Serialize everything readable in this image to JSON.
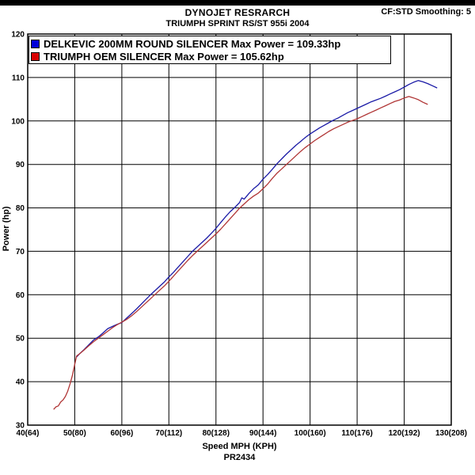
{
  "header": {
    "brand": "DYNOJET RESRARCH",
    "subtitle": "TRIUMPH SPRINT RS/ST 955i 2004",
    "smoothing": "CF:STD Smoothing: 5"
  },
  "legend": [
    {
      "label": "DELKEVIC 200MM ROUND SILENCER Max Power = 109.33hp",
      "color": "#0000d8"
    },
    {
      "label": "TRIUMPH OEM SILENCER Max Power = 105.62hp",
      "color": "#d80000"
    }
  ],
  "footer": {
    "code": "PR2434"
  },
  "chart_data": {
    "type": "line",
    "title": "TRIUMPH SPRINT RS/ST 955i 2004",
    "xlabel": "Speed MPH (KPH)",
    "ylabel": "Power (hp)",
    "xlim": [
      40,
      130
    ],
    "ylim": [
      30,
      120
    ],
    "grid": true,
    "legend_position": "top-left",
    "x_ticks": [
      {
        "value": 40,
        "label": "40(64)"
      },
      {
        "value": 50,
        "label": "50(80)"
      },
      {
        "value": 60,
        "label": "60(96)"
      },
      {
        "value": 70,
        "label": "70(112)"
      },
      {
        "value": 80,
        "label": "80(128)"
      },
      {
        "value": 90,
        "label": "90(144)"
      },
      {
        "value": 100,
        "label": "100(160)"
      },
      {
        "value": 110,
        "label": "110(176)"
      },
      {
        "value": 120,
        "label": "120(192)"
      },
      {
        "value": 130,
        "label": "130(208)"
      }
    ],
    "y_ticks": [
      30,
      40,
      50,
      60,
      70,
      80,
      90,
      100,
      110,
      120
    ],
    "series": [
      {
        "name": "DELKEVIC 200MM ROUND SILENCER",
        "key": "delkevic-power-curve",
        "max_power_hp": 109.33,
        "color": "#1a1aa6",
        "points": [
          [
            50.3,
            45.6
          ],
          [
            51,
            46.4
          ],
          [
            52,
            47.4
          ],
          [
            53,
            48.5
          ],
          [
            54,
            49.6
          ],
          [
            55,
            50.3
          ],
          [
            56,
            51.2
          ],
          [
            57,
            52.2
          ],
          [
            58,
            52.7
          ],
          [
            59,
            53.2
          ],
          [
            60,
            53.6
          ],
          [
            61,
            54.6
          ],
          [
            62,
            55.6
          ],
          [
            63,
            56.6
          ],
          [
            64,
            57.7
          ],
          [
            65,
            58.8
          ],
          [
            66,
            59.9
          ],
          [
            67,
            60.9
          ],
          [
            68,
            61.9
          ],
          [
            69,
            62.9
          ],
          [
            70,
            64.1
          ],
          [
            71,
            65.2
          ],
          [
            72,
            66.4
          ],
          [
            73,
            67.6
          ],
          [
            74,
            68.8
          ],
          [
            75,
            70.0
          ],
          [
            76,
            71.0
          ],
          [
            77,
            72.0
          ],
          [
            78,
            73.0
          ],
          [
            79,
            74.1
          ],
          [
            80,
            75.3
          ],
          [
            81,
            76.6
          ],
          [
            82,
            77.9
          ],
          [
            83,
            79.1
          ],
          [
            84,
            80.1
          ],
          [
            85,
            81.2
          ],
          [
            85.5,
            82.3
          ],
          [
            86,
            82.0
          ],
          [
            87,
            83.3
          ],
          [
            88,
            84.4
          ],
          [
            89,
            85.3
          ],
          [
            90,
            86.6
          ],
          [
            91,
            87.7
          ],
          [
            92,
            88.9
          ],
          [
            93,
            90.2
          ],
          [
            94,
            91.3
          ],
          [
            95,
            92.4
          ],
          [
            96,
            93.4
          ],
          [
            97,
            94.4
          ],
          [
            98,
            95.3
          ],
          [
            99,
            96.2
          ],
          [
            100,
            97.0
          ],
          [
            101,
            97.7
          ],
          [
            102,
            98.4
          ],
          [
            103,
            99.0
          ],
          [
            104,
            99.6
          ],
          [
            105,
            100.2
          ],
          [
            106,
            100.7
          ],
          [
            107,
            101.3
          ],
          [
            108,
            101.9
          ],
          [
            109,
            102.4
          ],
          [
            110,
            102.9
          ],
          [
            111,
            103.4
          ],
          [
            112,
            103.9
          ],
          [
            113,
            104.4
          ],
          [
            114,
            104.8
          ],
          [
            115,
            105.2
          ],
          [
            116,
            105.7
          ],
          [
            117,
            106.2
          ],
          [
            118,
            106.7
          ],
          [
            119,
            107.2
          ],
          [
            120,
            107.8
          ],
          [
            121,
            108.4
          ],
          [
            122,
            108.9
          ],
          [
            123,
            109.3
          ],
          [
            124,
            109.0
          ],
          [
            125,
            108.6
          ],
          [
            126,
            108.1
          ],
          [
            127,
            107.6
          ]
        ]
      },
      {
        "name": "TRIUMPH OEM SILENCER",
        "key": "oem-power-curve",
        "max_power_hp": 105.62,
        "color": "#b03535",
        "points": [
          [
            45.5,
            33.6
          ],
          [
            46,
            34.2
          ],
          [
            46.5,
            34.4
          ],
          [
            47,
            35.3
          ],
          [
            47.5,
            35.8
          ],
          [
            48,
            36.6
          ],
          [
            48.5,
            37.8
          ],
          [
            49,
            39.5
          ],
          [
            49.5,
            41.5
          ],
          [
            50,
            44.0
          ],
          [
            50.4,
            45.9
          ],
          [
            51,
            46.4
          ],
          [
            52,
            47.3
          ],
          [
            53,
            48.3
          ],
          [
            54,
            49.2
          ],
          [
            55,
            50.0
          ],
          [
            56,
            50.8
          ],
          [
            57,
            51.6
          ],
          [
            58,
            52.4
          ],
          [
            59,
            53.1
          ],
          [
            60,
            53.7
          ],
          [
            61,
            54.3
          ],
          [
            62,
            55.1
          ],
          [
            63,
            56.0
          ],
          [
            64,
            57.0
          ],
          [
            65,
            58.0
          ],
          [
            66,
            59.0
          ],
          [
            67,
            60.0
          ],
          [
            68,
            61.0
          ],
          [
            69,
            62.0
          ],
          [
            70,
            63.1
          ],
          [
            71,
            64.3
          ],
          [
            72,
            65.5
          ],
          [
            73,
            66.7
          ],
          [
            74,
            67.9
          ],
          [
            75,
            69.0
          ],
          [
            76,
            70.0
          ],
          [
            77,
            71.0
          ],
          [
            78,
            72.0
          ],
          [
            79,
            73.0
          ],
          [
            80,
            74.0
          ],
          [
            81,
            75.1
          ],
          [
            82,
            76.3
          ],
          [
            83,
            77.5
          ],
          [
            84,
            78.7
          ],
          [
            85,
            79.9
          ],
          [
            86,
            80.9
          ],
          [
            87,
            81.9
          ],
          [
            88,
            82.7
          ],
          [
            89,
            83.4
          ],
          [
            90,
            84.4
          ],
          [
            91,
            85.5
          ],
          [
            92,
            86.8
          ],
          [
            93,
            88.0
          ],
          [
            94,
            89.0
          ],
          [
            95,
            90.0
          ],
          [
            96,
            91.0
          ],
          [
            97,
            92.0
          ],
          [
            98,
            93.0
          ],
          [
            99,
            93.9
          ],
          [
            100,
            94.7
          ],
          [
            101,
            95.5
          ],
          [
            102,
            96.2
          ],
          [
            103,
            96.9
          ],
          [
            104,
            97.6
          ],
          [
            105,
            98.2
          ],
          [
            106,
            98.7
          ],
          [
            107,
            99.2
          ],
          [
            108,
            99.7
          ],
          [
            109,
            100.1
          ],
          [
            110,
            100.5
          ],
          [
            111,
            101.0
          ],
          [
            112,
            101.5
          ],
          [
            113,
            102.0
          ],
          [
            114,
            102.5
          ],
          [
            115,
            103.0
          ],
          [
            116,
            103.5
          ],
          [
            117,
            104.0
          ],
          [
            118,
            104.5
          ],
          [
            119,
            104.8
          ],
          [
            120,
            105.3
          ],
          [
            121,
            105.62
          ],
          [
            122,
            105.3
          ],
          [
            123,
            104.9
          ],
          [
            124,
            104.3
          ],
          [
            125,
            103.8
          ]
        ]
      }
    ]
  }
}
